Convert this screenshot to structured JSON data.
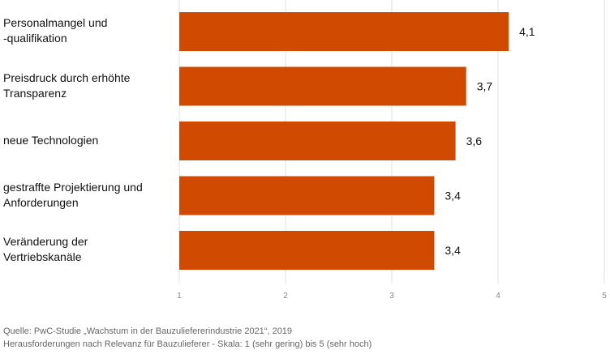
{
  "chart_data": {
    "type": "bar",
    "orientation": "horizontal",
    "categories": [
      [
        "Personalmangel und",
        "-qualifikation"
      ],
      [
        "Preisdruck durch erhöhte",
        "Transparenz"
      ],
      [
        "neue Technologien"
      ],
      [
        "gestraffte Projektierung und",
        "Anforderungen"
      ],
      [
        "Veränderung der",
        "Vertriebskanäle"
      ]
    ],
    "values": [
      4.1,
      3.7,
      3.6,
      3.4,
      3.4
    ],
    "value_labels": [
      "4,1",
      "3,7",
      "3,6",
      "3,4",
      "3,4"
    ],
    "xlim": [
      1,
      5
    ],
    "ticks": [
      1,
      2,
      3,
      4,
      5
    ],
    "tick_labels": [
      "1",
      "2",
      "3",
      "4",
      "5"
    ],
    "grid": true,
    "bar_color": "#d04a02",
    "title": "",
    "xlabel": "",
    "ylabel": ""
  },
  "source": {
    "line1": "Quelle: PwC-Studie „Wachstum in der Bauzuliefererindustrie 2021“, 2019",
    "line2": "Herausforderungen nach Relevanz für Bauzulieferer - Skala: 1 (sehr gering) bis 5 (sehr hoch)"
  }
}
